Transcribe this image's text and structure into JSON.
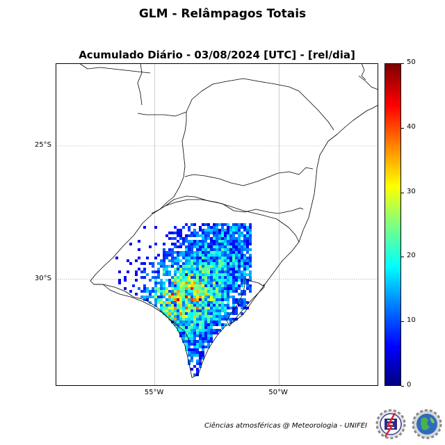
{
  "suptitle": "GLM - Relâmpagos Totais",
  "title": "Acumulado Diário - 03/08/2024 [UTC] - [rel/dia]",
  "map": {
    "lon_range": [
      -59,
      -46
    ],
    "lat_range": [
      -34.0,
      -21.9
    ],
    "lat_ticks": [
      {
        "value": -25,
        "label": "25°S"
      },
      {
        "value": -30,
        "label": "30°S"
      }
    ],
    "lon_ticks": [
      {
        "value": -55,
        "label": "55°W"
      },
      {
        "value": -50,
        "label": "50°W"
      }
    ],
    "gridlines": true
  },
  "colorbar": {
    "cmap": "jet",
    "range": [
      0,
      50
    ],
    "ticks": [
      "0",
      "10",
      "20",
      "30",
      "40",
      "50"
    ]
  },
  "chart_data": {
    "type": "heatmap",
    "title": "Acumulado Diário - 03/08/2024 [UTC] - [rel/dia]",
    "units": "rel/dia",
    "vmin": 0,
    "vmax": 50,
    "region": "Rio Grande do Sul (central, southern and western areas)",
    "max_value_approx": 40
  },
  "footer": {
    "credit": "Ciências atmosféricas @ Meteorologia - UNIFEI"
  },
  "logos": [
    "unifei-emblem-logo",
    "globe-gear-logo"
  ]
}
